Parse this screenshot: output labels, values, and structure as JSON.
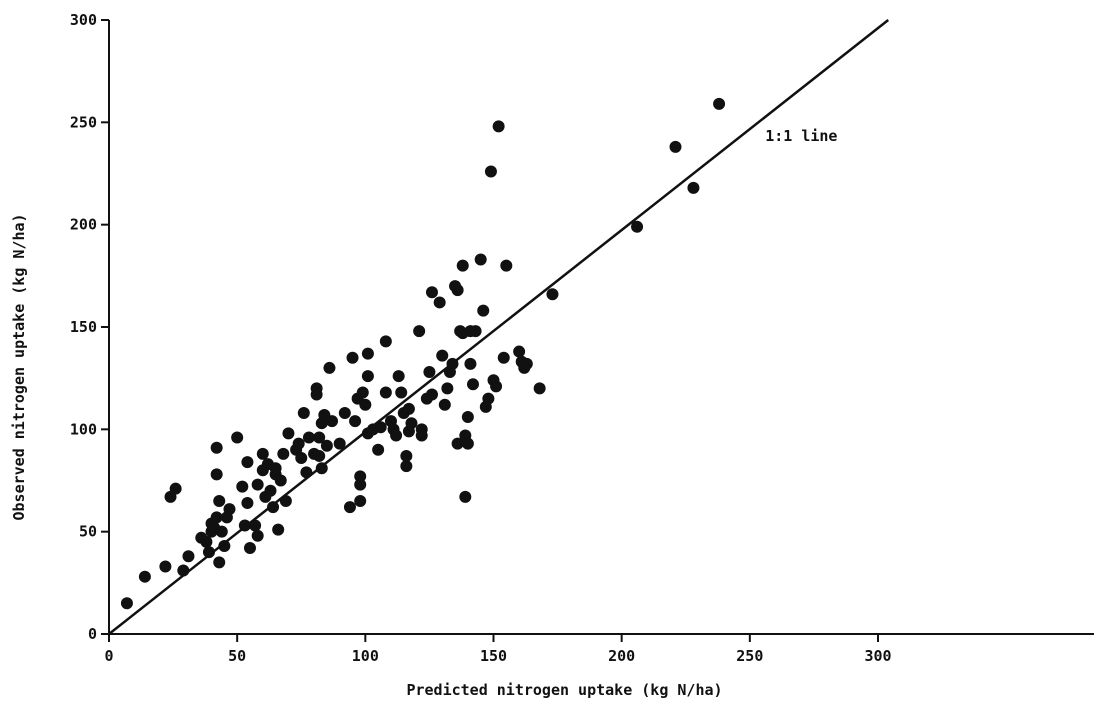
{
  "chart_data": {
    "type": "scatter",
    "title": "",
    "xlabel": "Predicted nitrogen uptake (kg N/ha)",
    "ylabel": "Observed nitrogen uptake (kg N/ha)",
    "xlim": [
      0,
      300
    ],
    "ylim": [
      0,
      300
    ],
    "xticks": [
      "0",
      "50",
      "100",
      "150",
      "200",
      "250",
      "300"
    ],
    "yticks": [
      "0",
      "50",
      "100",
      "150",
      "200",
      "250",
      "300"
    ],
    "grid": false,
    "reference_line": {
      "label": "1:1 line",
      "from": [
        0,
        0
      ],
      "to": [
        304,
        300
      ]
    },
    "points": [
      [
        7,
        15
      ],
      [
        14,
        28
      ],
      [
        22,
        33
      ],
      [
        24,
        67
      ],
      [
        26,
        71
      ],
      [
        29,
        31
      ],
      [
        31,
        38
      ],
      [
        36,
        47
      ],
      [
        38,
        45
      ],
      [
        39,
        40
      ],
      [
        40,
        50
      ],
      [
        40,
        54
      ],
      [
        41,
        52
      ],
      [
        42,
        57
      ],
      [
        42,
        91
      ],
      [
        42,
        78
      ],
      [
        43,
        65
      ],
      [
        43,
        35
      ],
      [
        44,
        50
      ],
      [
        45,
        43
      ],
      [
        46,
        57
      ],
      [
        47,
        61
      ],
      [
        50,
        96
      ],
      [
        52,
        72
      ],
      [
        53,
        53
      ],
      [
        54,
        84
      ],
      [
        54,
        64
      ],
      [
        55,
        42
      ],
      [
        57,
        53
      ],
      [
        58,
        48
      ],
      [
        58,
        73
      ],
      [
        60,
        80
      ],
      [
        60,
        88
      ],
      [
        61,
        67
      ],
      [
        62,
        83
      ],
      [
        63,
        70
      ],
      [
        64,
        62
      ],
      [
        65,
        78
      ],
      [
        65,
        81
      ],
      [
        66,
        51
      ],
      [
        67,
        75
      ],
      [
        68,
        88
      ],
      [
        69,
        65
      ],
      [
        70,
        98
      ],
      [
        73,
        90
      ],
      [
        74,
        93
      ],
      [
        75,
        86
      ],
      [
        76,
        108
      ],
      [
        77,
        79
      ],
      [
        78,
        96
      ],
      [
        80,
        88
      ],
      [
        81,
        120
      ],
      [
        81,
        117
      ],
      [
        82,
        96
      ],
      [
        82,
        87
      ],
      [
        83,
        103
      ],
      [
        83,
        81
      ],
      [
        84,
        107
      ],
      [
        85,
        92
      ],
      [
        86,
        130
      ],
      [
        87,
        104
      ],
      [
        90,
        93
      ],
      [
        92,
        108
      ],
      [
        94,
        62
      ],
      [
        95,
        135
      ],
      [
        96,
        104
      ],
      [
        97,
        115
      ],
      [
        98,
        65
      ],
      [
        98,
        77
      ],
      [
        98,
        73
      ],
      [
        99,
        118
      ],
      [
        100,
        112
      ],
      [
        101,
        98
      ],
      [
        101,
        126
      ],
      [
        101,
        137
      ],
      [
        103,
        100
      ],
      [
        105,
        90
      ],
      [
        106,
        101
      ],
      [
        108,
        118
      ],
      [
        108,
        143
      ],
      [
        110,
        104
      ],
      [
        111,
        100
      ],
      [
        112,
        97
      ],
      [
        113,
        126
      ],
      [
        114,
        118
      ],
      [
        115,
        108
      ],
      [
        116,
        82
      ],
      [
        116,
        87
      ],
      [
        117,
        99
      ],
      [
        117,
        110
      ],
      [
        118,
        103
      ],
      [
        121,
        148
      ],
      [
        122,
        100
      ],
      [
        122,
        97
      ],
      [
        124,
        115
      ],
      [
        125,
        128
      ],
      [
        126,
        117
      ],
      [
        126,
        167
      ],
      [
        129,
        162
      ],
      [
        130,
        136
      ],
      [
        131,
        112
      ],
      [
        132,
        120
      ],
      [
        133,
        128
      ],
      [
        134,
        132
      ],
      [
        135,
        170
      ],
      [
        136,
        168
      ],
      [
        136,
        93
      ],
      [
        137,
        148
      ],
      [
        138,
        180
      ],
      [
        138,
        147
      ],
      [
        139,
        97
      ],
      [
        139,
        67
      ],
      [
        140,
        93
      ],
      [
        140,
        106
      ],
      [
        141,
        132
      ],
      [
        141,
        148
      ],
      [
        142,
        122
      ],
      [
        143,
        148
      ],
      [
        145,
        183
      ],
      [
        146,
        158
      ],
      [
        147,
        111
      ],
      [
        148,
        115
      ],
      [
        149,
        226
      ],
      [
        150,
        124
      ],
      [
        151,
        121
      ],
      [
        152,
        248
      ],
      [
        154,
        135
      ],
      [
        155,
        180
      ],
      [
        160,
        138
      ],
      [
        161,
        133
      ],
      [
        162,
        130
      ],
      [
        163,
        132
      ],
      [
        168,
        120
      ],
      [
        173,
        166
      ],
      [
        206,
        199
      ],
      [
        221,
        238
      ],
      [
        228,
        218
      ],
      [
        238,
        259
      ]
    ]
  }
}
